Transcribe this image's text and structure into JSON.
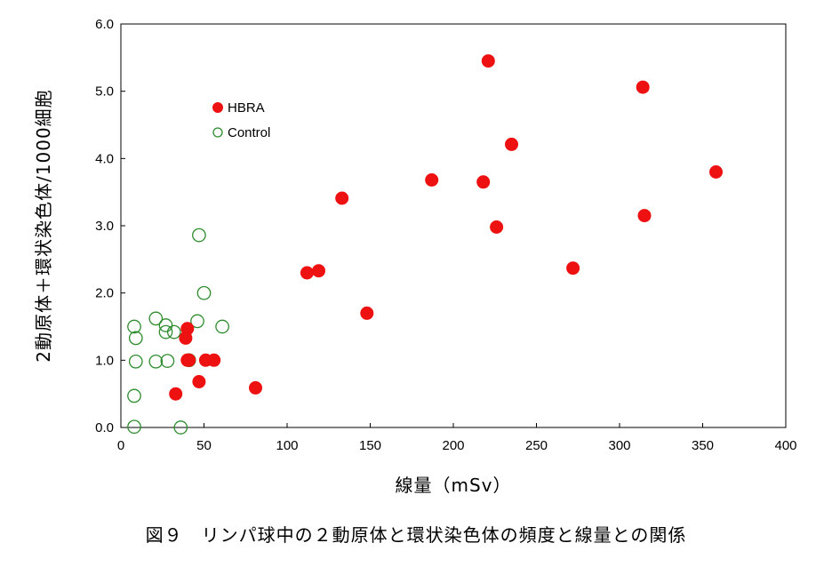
{
  "caption": "図９　リンパ球中の２動原体と環状染色体の頻度と線量との関係",
  "chart_data": {
    "type": "scatter",
    "xlabel": "線量（mSv）",
    "ylabel": "2動原体＋環状染色体/1000細胞",
    "xlim": [
      0,
      400
    ],
    "ylim": [
      0,
      6
    ],
    "x_ticks": [
      "0",
      "50",
      "100",
      "150",
      "200",
      "250",
      "300",
      "350",
      "400"
    ],
    "y_ticks": [
      "0.0",
      "1.0",
      "2.0",
      "3.0",
      "4.0",
      "5.0",
      "6.0"
    ],
    "grid": false,
    "legend_position": "top-left",
    "series": [
      {
        "name": "HBRA",
        "marker": "filled-circle",
        "color": "#ee1111",
        "points": [
          [
            221,
            5.45
          ],
          [
            314,
            5.06
          ],
          [
            235,
            4.21
          ],
          [
            358,
            3.8
          ],
          [
            187,
            3.68
          ],
          [
            218,
            3.65
          ],
          [
            133,
            3.41
          ],
          [
            315,
            3.15
          ],
          [
            226,
            2.98
          ],
          [
            272,
            2.37
          ],
          [
            119,
            2.33
          ],
          [
            112,
            2.3
          ],
          [
            148,
            1.7
          ],
          [
            40,
            1.47
          ],
          [
            39,
            1.33
          ],
          [
            40,
            1.0
          ],
          [
            41,
            1.0
          ],
          [
            51,
            1.0
          ],
          [
            56,
            1.0
          ],
          [
            81,
            0.59
          ],
          [
            47,
            0.68
          ],
          [
            33,
            0.5
          ]
        ]
      },
      {
        "name": "Control",
        "marker": "open-circle",
        "color": "#2e8b2e",
        "points": [
          [
            47,
            2.86
          ],
          [
            50,
            2.0
          ],
          [
            21,
            1.62
          ],
          [
            27,
            1.52
          ],
          [
            46,
            1.58
          ],
          [
            8,
            1.5
          ],
          [
            61,
            1.5
          ],
          [
            27,
            1.42
          ],
          [
            32,
            1.42
          ],
          [
            9,
            1.33
          ],
          [
            9,
            0.98
          ],
          [
            21,
            0.98
          ],
          [
            28,
            0.99
          ],
          [
            41,
            1.0
          ],
          [
            8,
            0.47
          ],
          [
            8,
            0.01
          ],
          [
            36,
            0.0
          ]
        ]
      }
    ]
  }
}
